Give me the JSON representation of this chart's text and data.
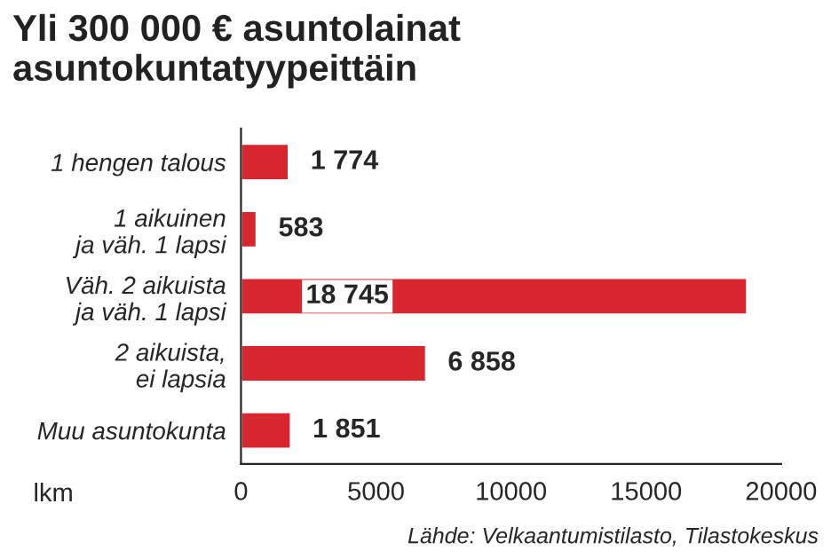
{
  "chart_data": {
    "type": "bar",
    "orientation": "horizontal",
    "title": "Yli 300 000 € asuntolainat\nasuntokuntatyypeittäin",
    "categories": [
      "1 hengen talous",
      "1 aikuinen\nja väh. 1 lapsi",
      "Väh. 2 aikuista\nja väh. 1 lapsi",
      "2 aikuista,\nei lapsia",
      "Muu asuntokunta"
    ],
    "values": [
      1774,
      583,
      18745,
      6858,
      1851
    ],
    "value_labels": [
      "1 774",
      "583",
      "18 745",
      "6 858",
      "1 851"
    ],
    "color": "#d7262e",
    "xlabel": "lkm",
    "xlim": [
      0,
      20000
    ],
    "xticks": [
      0,
      5000,
      10000,
      15000,
      20000
    ],
    "grid": false,
    "annotations": [
      "Lähde: Velkaantumistilasto, Tilastokeskus"
    ]
  }
}
